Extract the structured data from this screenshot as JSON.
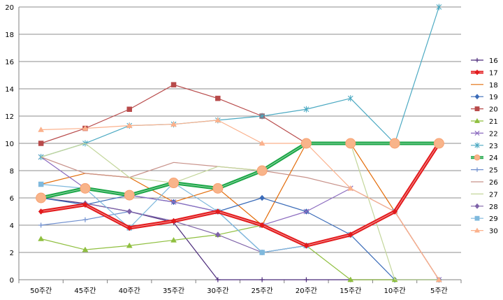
{
  "chart_data": {
    "type": "line",
    "x": [
      "50주간",
      "45주간",
      "40주간",
      "35주간",
      "30주간",
      "25주간",
      "20주간",
      "15주간",
      "10주간",
      "5주간"
    ],
    "ylim": [
      0,
      20
    ],
    "yticks": [
      0,
      2,
      4,
      6,
      8,
      10,
      12,
      14,
      16,
      18,
      20
    ],
    "grid": "horizontal",
    "legend_position": "right",
    "series": [
      {
        "name": "16",
        "color": "#4b2a7a",
        "marker": "plus",
        "values": [
          6,
          5.6,
          5,
          4.2,
          0,
          0,
          0,
          0,
          0,
          0
        ]
      },
      {
        "name": "17",
        "color": "#e31a1c",
        "marker": "diamond",
        "bold": true,
        "values": [
          5,
          5.5,
          3.8,
          4.3,
          5,
          4,
          2.5,
          3.3,
          5,
          10
        ]
      },
      {
        "name": "18",
        "color": "#e36c09",
        "marker": "none",
        "values": [
          7,
          7.8,
          7.5,
          5.7,
          6.7,
          4,
          10,
          10,
          5,
          0
        ]
      },
      {
        "name": "19",
        "color": "#3a6bb8",
        "marker": "diamond",
        "values": [
          6,
          5.5,
          6.2,
          5.7,
          5,
          6,
          5,
          3.3,
          0,
          0
        ]
      },
      {
        "name": "20",
        "color": "#b84a4a",
        "marker": "square",
        "values": [
          10,
          11.1,
          12.5,
          14.3,
          13.3,
          12,
          10,
          10,
          10,
          10
        ]
      },
      {
        "name": "21",
        "color": "#8fbf3f",
        "marker": "triangle",
        "values": [
          3,
          2.2,
          2.5,
          2.9,
          3.3,
          4,
          2.5,
          0,
          0,
          0
        ]
      },
      {
        "name": "22",
        "color": "#8b6bbf",
        "marker": "x",
        "values": [
          9,
          6.7,
          6.2,
          5.7,
          5,
          4,
          5,
          6.7,
          5,
          0
        ]
      },
      {
        "name": "23",
        "color": "#4ba9c2",
        "marker": "star",
        "values": [
          9,
          10,
          11.3,
          11.4,
          11.7,
          12,
          12.5,
          13.3,
          10,
          20
        ]
      },
      {
        "name": "24",
        "color": "#1aa646",
        "marker": "circle",
        "bold": true,
        "values": [
          6,
          6.7,
          6.2,
          7.1,
          6.7,
          8,
          10,
          10,
          10,
          10
        ]
      },
      {
        "name": "25",
        "color": "#6f8fcf",
        "marker": "plus",
        "values": [
          4,
          4.4,
          5,
          4.3,
          5,
          2,
          2.5,
          3.3,
          5,
          10
        ]
      },
      {
        "name": "26",
        "color": "#c8928a",
        "marker": "none",
        "values": [
          9,
          7.8,
          7.5,
          8.6,
          8.3,
          8,
          7.5,
          6.7,
          5,
          0
        ]
      },
      {
        "name": "27",
        "color": "#c3d69b",
        "marker": "none",
        "values": [
          9,
          10,
          7.5,
          7.1,
          8.3,
          8,
          10,
          10,
          0,
          0
        ]
      },
      {
        "name": "28",
        "color": "#7e62a8",
        "marker": "diamond",
        "values": [
          5,
          5.6,
          5,
          4.3,
          3.3,
          2,
          2.5,
          3.3,
          5,
          10
        ]
      },
      {
        "name": "29",
        "color": "#7fb9dd",
        "marker": "square",
        "values": [
          7,
          6.7,
          3.8,
          7.1,
          5,
          2,
          2.5,
          3.3,
          5,
          10
        ]
      },
      {
        "name": "30",
        "color": "#fbb18c",
        "marker": "triangle",
        "values": [
          11,
          11.1,
          11.3,
          11.4,
          11.7,
          10,
          10,
          6.7,
          5,
          0
        ]
      }
    ]
  }
}
